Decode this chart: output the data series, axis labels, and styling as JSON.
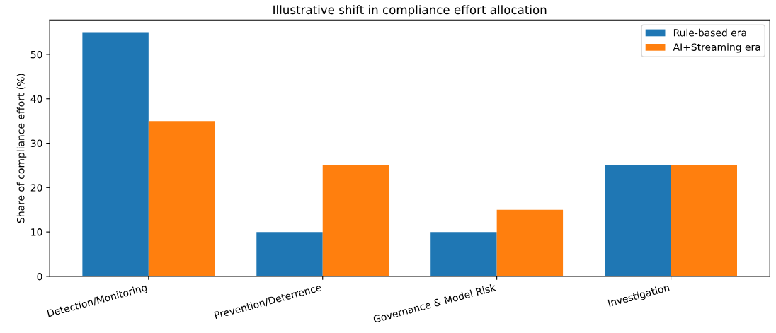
{
  "chart_data": {
    "type": "bar",
    "title": "Illustrative shift in compliance effort allocation",
    "ylabel": "Share of compliance effort (%)",
    "categories": [
      "Detection/Monitoring",
      "Prevention/Deterrence",
      "Governance & Model Risk",
      "Investigation"
    ],
    "series": [
      {
        "name": "Rule-based era",
        "color": "#1f77b4",
        "values": [
          55,
          10,
          10,
          25
        ]
      },
      {
        "name": "AI+Streaming era",
        "color": "#ff7f0e",
        "values": [
          35,
          25,
          15,
          25
        ]
      }
    ],
    "ylim": [
      0,
      57.75
    ],
    "yticks": [
      0,
      10,
      20,
      30,
      40,
      50
    ],
    "grid": false,
    "legend": "top right"
  }
}
